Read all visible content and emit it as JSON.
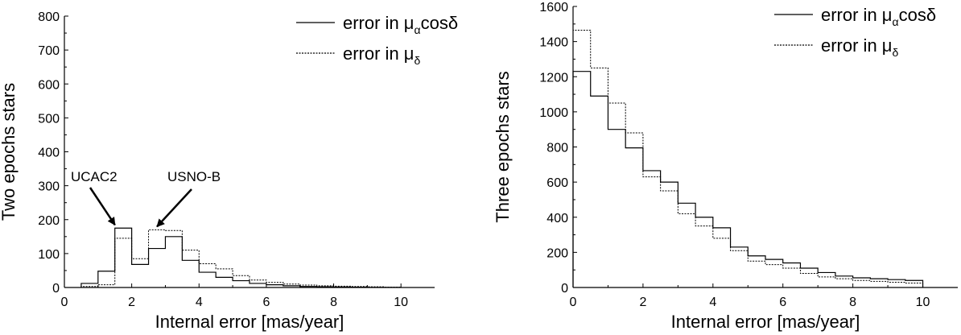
{
  "chart_data": [
    {
      "type": "histogram-step",
      "title": "",
      "xlabel": "Internal error [mas/year]",
      "ylabel": "Two epochs stars",
      "xlim": [
        0,
        11
      ],
      "ylim": [
        0,
        800
      ],
      "xticks": [
        0,
        2,
        4,
        6,
        8,
        10
      ],
      "yticks": [
        0,
        100,
        200,
        300,
        400,
        500,
        600,
        700,
        800
      ],
      "grid": false,
      "legend_position": "top-right",
      "bin_width": 0.5,
      "bin_edges": [
        0.5,
        1,
        1.5,
        2,
        2.5,
        3,
        3.5,
        4,
        4.5,
        5,
        5.5,
        6,
        6.5,
        7,
        7.5,
        8,
        8.5,
        9,
        9.5,
        10
      ],
      "series": [
        {
          "name_main": "error in μ",
          "name_sub": "α",
          "name_suffix": "cosδ",
          "style": "solid",
          "values": [
            12,
            48,
            175,
            68,
            115,
            150,
            80,
            45,
            30,
            20,
            12,
            8,
            5,
            3,
            2,
            1.5,
            1,
            0.5,
            0.5
          ]
        },
        {
          "name_main": "error in μ",
          "name_sub": "δ",
          "name_suffix": "",
          "style": "dotted",
          "values": [
            3,
            8,
            145,
            85,
            170,
            168,
            110,
            70,
            55,
            35,
            22,
            15,
            10,
            7,
            5,
            4,
            3,
            2,
            1
          ]
        }
      ],
      "annotations": [
        {
          "text": "UCAC2",
          "arrow_to": [
            1.55,
            175
          ]
        },
        {
          "text": "USNO-B",
          "arrow_to": [
            2.8,
            170
          ]
        }
      ]
    },
    {
      "type": "histogram-step",
      "title": "",
      "xlabel": "Internal error [mas/year]",
      "ylabel": "Three epochs stars",
      "xlim": [
        0,
        11
      ],
      "ylim": [
        0,
        1600
      ],
      "xticks": [
        0,
        2,
        4,
        6,
        8,
        10
      ],
      "yticks": [
        0,
        200,
        400,
        600,
        800,
        1000,
        1200,
        1400,
        1600
      ],
      "grid": false,
      "legend_position": "top-right",
      "bin_width": 0.5,
      "bin_edges": [
        0,
        0.5,
        1,
        1.5,
        2,
        2.5,
        3,
        3.5,
        4,
        4.5,
        5,
        5.5,
        6,
        6.5,
        7,
        7.5,
        8,
        8.5,
        9,
        9.5,
        10
      ],
      "series": [
        {
          "name_main": "error in μ",
          "name_sub": "α",
          "name_suffix": "cosδ",
          "style": "solid",
          "values": [
            1230,
            1090,
            900,
            795,
            665,
            600,
            480,
            400,
            340,
            230,
            180,
            160,
            140,
            110,
            85,
            65,
            55,
            50,
            45,
            40
          ]
        },
        {
          "name_main": "error in μ",
          "name_sub": "δ",
          "name_suffix": "",
          "style": "dotted",
          "values": [
            1465,
            1250,
            1050,
            880,
            630,
            550,
            420,
            350,
            280,
            210,
            150,
            130,
            110,
            80,
            60,
            50,
            40,
            35,
            30,
            25
          ]
        }
      ],
      "annotations": []
    }
  ]
}
